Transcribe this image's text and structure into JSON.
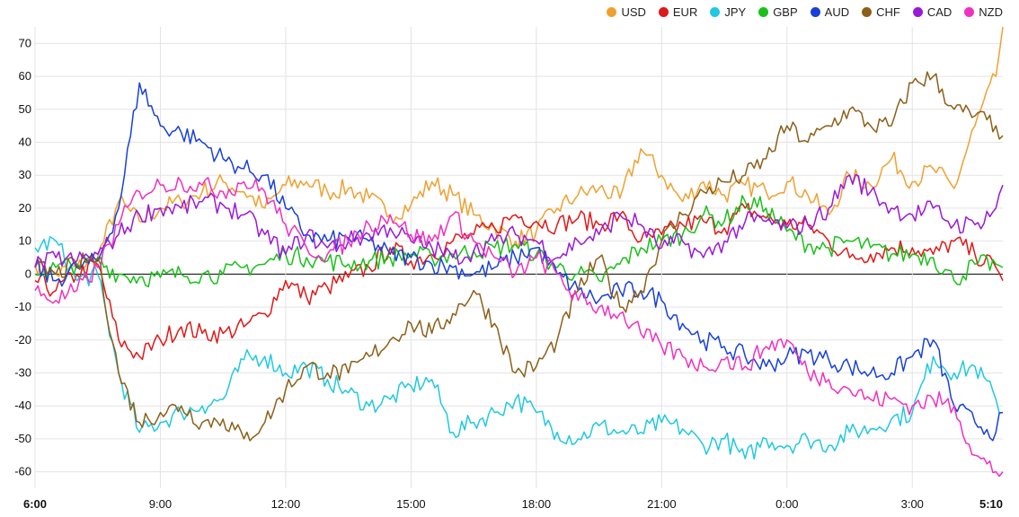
{
  "chart_data": {
    "type": "line",
    "title": "",
    "xlabel": "",
    "ylabel": "",
    "ylim": [
      -65,
      75
    ],
    "xlim": [
      0,
      23.1667
    ],
    "y_ticks": [
      70,
      60,
      50,
      40,
      30,
      20,
      10,
      0,
      -10,
      -20,
      -30,
      -40,
      -50,
      -60
    ],
    "x_ticks": [
      {
        "value": 0,
        "label": "6:00",
        "bold": true
      },
      {
        "value": 3,
        "label": "9:00",
        "bold": false
      },
      {
        "value": 6,
        "label": "12:00",
        "bold": false
      },
      {
        "value": 9,
        "label": "15:00",
        "bold": false
      },
      {
        "value": 12,
        "label": "18:00",
        "bold": false
      },
      {
        "value": 15,
        "label": "21:00",
        "bold": false
      },
      {
        "value": 18,
        "label": "0:00",
        "bold": false
      },
      {
        "value": 21,
        "label": "3:00",
        "bold": false
      },
      {
        "value": 23.1667,
        "label": "5:10",
        "bold": true
      }
    ],
    "grid": true,
    "legend_position": "top-right",
    "x_hours": [
      0,
      0.5,
      1,
      1.5,
      2,
      2.5,
      3,
      3.5,
      4,
      4.5,
      5,
      5.5,
      6,
      6.5,
      7,
      7.5,
      8,
      8.5,
      9,
      9.5,
      10,
      10.5,
      11,
      11.5,
      12,
      12.5,
      13,
      13.5,
      14,
      14.5,
      15,
      15.5,
      16,
      16.5,
      17,
      17.5,
      18,
      18.5,
      19,
      19.5,
      20,
      20.5,
      21,
      21.5,
      22,
      22.5,
      23,
      23.1667
    ],
    "series": [
      {
        "name": "USD",
        "color": "#f0a030",
        "values": [
          3,
          0,
          2,
          5,
          22,
          16,
          20,
          22,
          25,
          28,
          25,
          20,
          27,
          28,
          25,
          26,
          23,
          18,
          21,
          28,
          24,
          18,
          14,
          10,
          13,
          20,
          24,
          26,
          23,
          38,
          30,
          22,
          28,
          24,
          27,
          25,
          28,
          24,
          18,
          30,
          27,
          35,
          28,
          32,
          26,
          45,
          60,
          75
        ]
      },
      {
        "name": "EUR",
        "color": "#e01818",
        "values": [
          -2,
          -5,
          0,
          3,
          -20,
          -25,
          -20,
          -16,
          -18,
          -18,
          -16,
          -12,
          -2,
          -7,
          -4,
          -1,
          2,
          8,
          4,
          6,
          10,
          12,
          14,
          18,
          16,
          15,
          17,
          15,
          18,
          10,
          12,
          15,
          16,
          14,
          20,
          17,
          15,
          15,
          10,
          5,
          6,
          8,
          8,
          6,
          10,
          6,
          2,
          -2
        ]
      },
      {
        "name": "JPY",
        "color": "#20c8e0",
        "values": [
          8,
          10,
          -2,
          0,
          -30,
          -48,
          -45,
          -42,
          -40,
          -38,
          -26,
          -25,
          -30,
          -28,
          -32,
          -36,
          -40,
          -38,
          -34,
          -32,
          -48,
          -45,
          -42,
          -38,
          -42,
          -48,
          -50,
          -46,
          -48,
          -48,
          -45,
          -47,
          -52,
          -50,
          -56,
          -50,
          -52,
          -50,
          -52,
          -48,
          -47,
          -44,
          -42,
          -25,
          -30,
          -28,
          -38,
          -42
        ]
      },
      {
        "name": "GBP",
        "color": "#18c018",
        "values": [
          0,
          2,
          3,
          4,
          0,
          -1,
          -1,
          0,
          0,
          0,
          2,
          3,
          6,
          5,
          4,
          3,
          4,
          5,
          6,
          5,
          6,
          7,
          8,
          9,
          6,
          2,
          0,
          -2,
          3,
          8,
          10,
          12,
          18,
          16,
          22,
          20,
          13,
          9,
          8,
          10,
          8,
          6,
          6,
          5,
          -2,
          3,
          3,
          2
        ]
      },
      {
        "name": "AUD",
        "color": "#1840d8",
        "values": [
          2,
          -2,
          2,
          4,
          20,
          58,
          45,
          43,
          40,
          35,
          32,
          30,
          20,
          12,
          10,
          11,
          10,
          6,
          5,
          3,
          2,
          0,
          2,
          5,
          8,
          0,
          -5,
          -8,
          -5,
          -5,
          -8,
          -15,
          -20,
          -22,
          -25,
          -28,
          -25,
          -24,
          -26,
          -28,
          -30,
          -30,
          -25,
          -20,
          -40,
          -45,
          -48,
          -42
        ]
      },
      {
        "name": "CHF",
        "color": "#8a6018",
        "values": [
          2,
          0,
          3,
          5,
          -30,
          -45,
          -42,
          -40,
          -45,
          -44,
          -50,
          -45,
          -35,
          -28,
          -30,
          -30,
          -25,
          -20,
          -15,
          -18,
          -12,
          -5,
          -15,
          -30,
          -28,
          -20,
          -5,
          5,
          -10,
          -5,
          10,
          18,
          25,
          28,
          30,
          35,
          45,
          40,
          45,
          50,
          45,
          45,
          58,
          60,
          50,
          48,
          45,
          42
        ]
      },
      {
        "name": "CAD",
        "color": "#9a18d8",
        "values": [
          2,
          5,
          4,
          6,
          12,
          18,
          20,
          20,
          22,
          21,
          18,
          12,
          6,
          12,
          8,
          10,
          12,
          14,
          10,
          8,
          5,
          7,
          10,
          12,
          10,
          5,
          10,
          12,
          18,
          15,
          8,
          10,
          5,
          10,
          16,
          16,
          14,
          15,
          20,
          30,
          25,
          20,
          18,
          20,
          15,
          15,
          20,
          27
        ]
      },
      {
        "name": "NZD",
        "color": "#f030c0",
        "values": [
          -5,
          -8,
          -5,
          2,
          15,
          25,
          27,
          28,
          27,
          25,
          28,
          25,
          15,
          8,
          6,
          10,
          15,
          18,
          12,
          10,
          18,
          10,
          5,
          0,
          5,
          0,
          -8,
          -10,
          -12,
          -18,
          -22,
          -25,
          -28,
          -26,
          -28,
          -22,
          -20,
          -30,
          -32,
          -35,
          -38,
          -38,
          -40,
          -38,
          -40,
          -55,
          -60,
          -60
        ]
      }
    ]
  }
}
